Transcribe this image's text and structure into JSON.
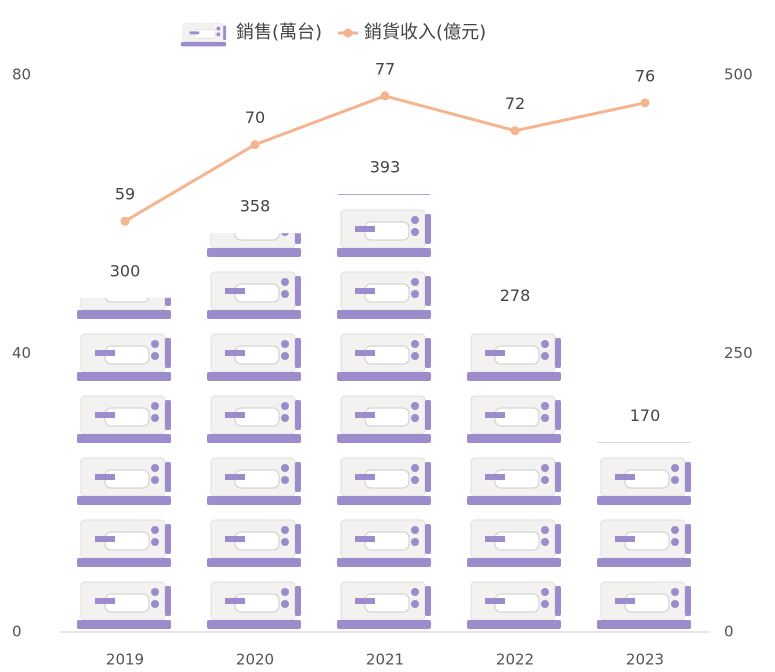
{
  "chart_data": {
    "type": "bar-line",
    "categories": [
      "2019",
      "2020",
      "2021",
      "2022",
      "2023"
    ],
    "series": [
      {
        "name": "銷售(萬台)",
        "type": "bar",
        "axis": "y2",
        "color": "#9c8ccc",
        "values": [
          300,
          358,
          393,
          278,
          170
        ]
      },
      {
        "name": "銷貨收入(億元)",
        "type": "line",
        "axis": "y",
        "color": "#f4b48e",
        "values": [
          59,
          70,
          77,
          72,
          76
        ]
      }
    ],
    "ylim": [
      0,
      80
    ],
    "yticks": [
      0,
      40,
      80
    ],
    "y2lim": [
      0,
      500
    ],
    "y2ticks": [
      0,
      250,
      500
    ],
    "grid": false,
    "legend": "top"
  }
}
